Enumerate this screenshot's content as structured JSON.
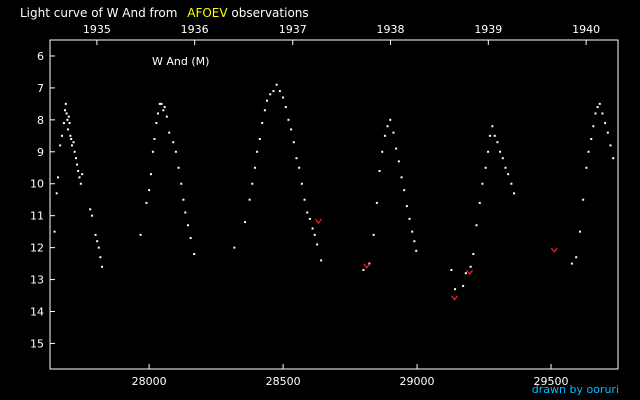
{
  "chart_data": {
    "type": "scatter",
    "title": {
      "prefix": "Light curve of W And from ",
      "source": "AFOEV",
      "suffix": " observations"
    },
    "series_label": "W And (M)",
    "credit": "drawn by ooruri",
    "x_axis": {
      "label": "",
      "range": [
        27630,
        29750
      ],
      "ticks": [
        28000,
        28500,
        29000,
        29500
      ]
    },
    "top_axis": {
      "ticks": [
        {
          "label": "1935",
          "jd": 27805
        },
        {
          "label": "1936",
          "jd": 28170
        },
        {
          "label": "1937",
          "jd": 28536
        },
        {
          "label": "1938",
          "jd": 28901
        },
        {
          "label": "1939",
          "jd": 29266
        },
        {
          "label": "1940",
          "jd": 29631
        }
      ]
    },
    "y_axis": {
      "label": "",
      "range": [
        5.5,
        15.8
      ],
      "inverted": true,
      "ticks": [
        6,
        7,
        8,
        9,
        10,
        11,
        12,
        13,
        14,
        15
      ]
    },
    "grid": false,
    "colors": {
      "background": "#000000",
      "axes": "#ffffff",
      "text": "#ffffff",
      "highlight_text": "#ffff00",
      "credit_text": "#00bfff",
      "observations": "#ffffff",
      "fainter_than": "#ff2020"
    },
    "series": [
      {
        "name": "",
        "marker": "dot",
        "color": "#ffffff",
        "points": [
          [
            27647,
            11.5
          ],
          [
            27655,
            10.3
          ],
          [
            27660,
            9.8
          ],
          [
            27668,
            8.8
          ],
          [
            27675,
            8.5
          ],
          [
            27682,
            8.1
          ],
          [
            27686,
            7.7
          ],
          [
            27689,
            7.5
          ],
          [
            27692,
            7.8
          ],
          [
            27695,
            8.0
          ],
          [
            27697,
            8.3
          ],
          [
            27700,
            7.9
          ],
          [
            27703,
            8.1
          ],
          [
            27706,
            8.5
          ],
          [
            27709,
            8.6
          ],
          [
            27712,
            8.8
          ],
          [
            27718,
            8.7
          ],
          [
            27722,
            9.0
          ],
          [
            27727,
            9.2
          ],
          [
            27731,
            9.4
          ],
          [
            27735,
            9.6
          ],
          [
            27740,
            9.8
          ],
          [
            27745,
            10.0
          ],
          [
            27750,
            9.7
          ],
          [
            27780,
            10.8
          ],
          [
            27787,
            11.0
          ],
          [
            27800,
            11.6
          ],
          [
            27806,
            11.8
          ],
          [
            27812,
            12.0
          ],
          [
            27818,
            12.3
          ],
          [
            27824,
            12.6
          ],
          [
            27968,
            11.6
          ],
          [
            27990,
            10.6
          ],
          [
            28000,
            10.2
          ],
          [
            28007,
            9.7
          ],
          [
            28014,
            9.0
          ],
          [
            28020,
            8.6
          ],
          [
            28027,
            8.1
          ],
          [
            28033,
            7.8
          ],
          [
            28040,
            7.5
          ],
          [
            28046,
            7.5
          ],
          [
            28053,
            7.7
          ],
          [
            28058,
            7.6
          ],
          [
            28066,
            7.9
          ],
          [
            28075,
            8.4
          ],
          [
            28090,
            8.7
          ],
          [
            28100,
            9.0
          ],
          [
            28110,
            9.5
          ],
          [
            28120,
            10.0
          ],
          [
            28128,
            10.5
          ],
          [
            28135,
            10.9
          ],
          [
            28145,
            11.3
          ],
          [
            28155,
            11.7
          ],
          [
            28168,
            12.2
          ],
          [
            28318,
            12.0
          ],
          [
            28358,
            11.2
          ],
          [
            28375,
            10.5
          ],
          [
            28385,
            10.0
          ],
          [
            28395,
            9.5
          ],
          [
            28403,
            9.0
          ],
          [
            28413,
            8.6
          ],
          [
            28422,
            8.1
          ],
          [
            28432,
            7.7
          ],
          [
            28440,
            7.4
          ],
          [
            28452,
            7.2
          ],
          [
            28464,
            7.1
          ],
          [
            28476,
            6.9
          ],
          [
            28488,
            7.1
          ],
          [
            28500,
            7.3
          ],
          [
            28510,
            7.6
          ],
          [
            28520,
            8.0
          ],
          [
            28530,
            8.3
          ],
          [
            28540,
            8.7
          ],
          [
            28550,
            9.2
          ],
          [
            28560,
            9.5
          ],
          [
            28570,
            10.0
          ],
          [
            28580,
            10.5
          ],
          [
            28590,
            10.9
          ],
          [
            28600,
            11.1
          ],
          [
            28610,
            11.4
          ],
          [
            28618,
            11.6
          ],
          [
            28627,
            11.9
          ],
          [
            28642,
            12.4
          ],
          [
            28800,
            12.7
          ],
          [
            28822,
            12.5
          ],
          [
            28838,
            11.6
          ],
          [
            28850,
            10.6
          ],
          [
            28860,
            9.6
          ],
          [
            28870,
            9.0
          ],
          [
            28880,
            8.5
          ],
          [
            28890,
            8.2
          ],
          [
            28900,
            8.0
          ],
          [
            28912,
            8.4
          ],
          [
            28922,
            8.9
          ],
          [
            28932,
            9.3
          ],
          [
            28942,
            9.8
          ],
          [
            28952,
            10.2
          ],
          [
            28962,
            10.7
          ],
          [
            28972,
            11.1
          ],
          [
            28982,
            11.5
          ],
          [
            28990,
            11.8
          ],
          [
            28997,
            12.1
          ],
          [
            29128,
            12.7
          ],
          [
            29142,
            13.3
          ],
          [
            29172,
            13.2
          ],
          [
            29182,
            12.8
          ],
          [
            29200,
            12.6
          ],
          [
            29210,
            12.2
          ],
          [
            29222,
            11.3
          ],
          [
            29234,
            10.6
          ],
          [
            29244,
            10.0
          ],
          [
            29256,
            9.5
          ],
          [
            29265,
            9.0
          ],
          [
            29272,
            8.5
          ],
          [
            29281,
            8.2
          ],
          [
            29290,
            8.5
          ],
          [
            29300,
            8.7
          ],
          [
            29310,
            9.0
          ],
          [
            29320,
            9.2
          ],
          [
            29330,
            9.5
          ],
          [
            29340,
            9.7
          ],
          [
            29352,
            10.0
          ],
          [
            29362,
            10.3
          ],
          [
            29578,
            12.5
          ],
          [
            29594,
            12.3
          ],
          [
            29608,
            11.5
          ],
          [
            29620,
            10.5
          ],
          [
            29632,
            9.5
          ],
          [
            29640,
            9.0
          ],
          [
            29650,
            8.6
          ],
          [
            29658,
            8.2
          ],
          [
            29666,
            7.8
          ],
          [
            29674,
            7.6
          ],
          [
            29682,
            7.5
          ],
          [
            29692,
            7.8
          ],
          [
            29702,
            8.1
          ],
          [
            29712,
            8.4
          ],
          [
            29722,
            8.8
          ],
          [
            29732,
            9.2
          ]
        ]
      },
      {
        "name": "",
        "marker": "v",
        "color": "#ff2020",
        "points": [
          [
            28632,
            11.2
          ],
          [
            28812,
            12.6
          ],
          [
            29140,
            13.6
          ],
          [
            29196,
            12.8
          ],
          [
            29512,
            12.1
          ]
        ]
      }
    ]
  }
}
